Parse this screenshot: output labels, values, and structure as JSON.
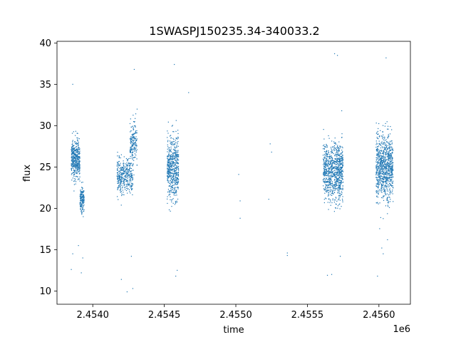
{
  "chart_data": {
    "type": "scatter",
    "title": "1SWASPJ150235.34-340033.2",
    "xlabel": "time",
    "ylabel": "flux",
    "x_offset_label": "1e6",
    "xlim": [
      2.45375,
      2.45622
    ],
    "ylim": [
      8.4,
      40.2
    ],
    "x_ticks": [
      2.454,
      2.4545,
      2.455,
      2.4555,
      2.456
    ],
    "x_tick_labels": [
      "2.4540",
      "2.4545",
      "2.4550",
      "2.4555",
      "2.4560"
    ],
    "y_ticks": [
      10,
      15,
      20,
      25,
      30,
      35,
      40
    ],
    "y_tick_labels": [
      "10",
      "15",
      "20",
      "25",
      "30",
      "35",
      "40"
    ],
    "grid": false,
    "marker_color": "#1f77b4",
    "series": [
      {
        "segments": [
          {
            "x": [
              2.45385,
              2.45391
            ],
            "center": 26.0,
            "spread": 2.2,
            "density": 420
          },
          {
            "x": [
              2.45391,
              2.45394
            ],
            "center": 21.0,
            "spread": 1.5,
            "density": 160
          },
          {
            "x": [
              2.45417,
              2.45428
            ],
            "center": 24.0,
            "spread": 2.0,
            "density": 380
          },
          {
            "x": [
              2.45426,
              2.45431
            ],
            "center": 28.0,
            "spread": 2.2,
            "density": 180
          },
          {
            "x": [
              2.45452,
              2.4546
            ],
            "center": 25.0,
            "spread": 3.5,
            "density": 560
          },
          {
            "x": [
              2.45561,
              2.45575
            ],
            "center": 24.5,
            "spread": 3.0,
            "density": 900
          },
          {
            "x": [
              2.45598,
              2.4561
            ],
            "center": 25.0,
            "spread": 3.5,
            "density": 900
          }
        ],
        "outliers": [
          [
            2.45386,
            35.0
          ],
          [
            2.45385,
            12.6
          ],
          [
            2.45386,
            14.5
          ],
          [
            2.45392,
            12.2
          ],
          [
            2.45393,
            14.0
          ],
          [
            2.4539,
            15.5
          ],
          [
            2.4542,
            11.4
          ],
          [
            2.45424,
            9.9
          ],
          [
            2.45428,
            10.3
          ],
          [
            2.45429,
            36.8
          ],
          [
            2.45431,
            32.0
          ],
          [
            2.45427,
            14.2
          ],
          [
            2.45457,
            37.4
          ],
          [
            2.45459,
            12.5
          ],
          [
            2.45458,
            11.8
          ],
          [
            2.45467,
            34.0
          ],
          [
            2.45502,
            24.1
          ],
          [
            2.45503,
            20.9
          ],
          [
            2.45503,
            18.8
          ],
          [
            2.45523,
            21.1
          ],
          [
            2.45524,
            27.8
          ],
          [
            2.45525,
            26.8
          ],
          [
            2.45536,
            14.6
          ],
          [
            2.45536,
            14.3
          ],
          [
            2.45564,
            11.9
          ],
          [
            2.45567,
            12.0
          ],
          [
            2.45569,
            38.7
          ],
          [
            2.45571,
            38.5
          ],
          [
            2.45573,
            14.2
          ],
          [
            2.45599,
            11.8
          ],
          [
            2.45602,
            15.2
          ],
          [
            2.45603,
            14.5
          ],
          [
            2.45605,
            38.2
          ],
          [
            2.45606,
            16.2
          ],
          [
            2.45574,
            31.8
          ]
        ]
      }
    ]
  }
}
